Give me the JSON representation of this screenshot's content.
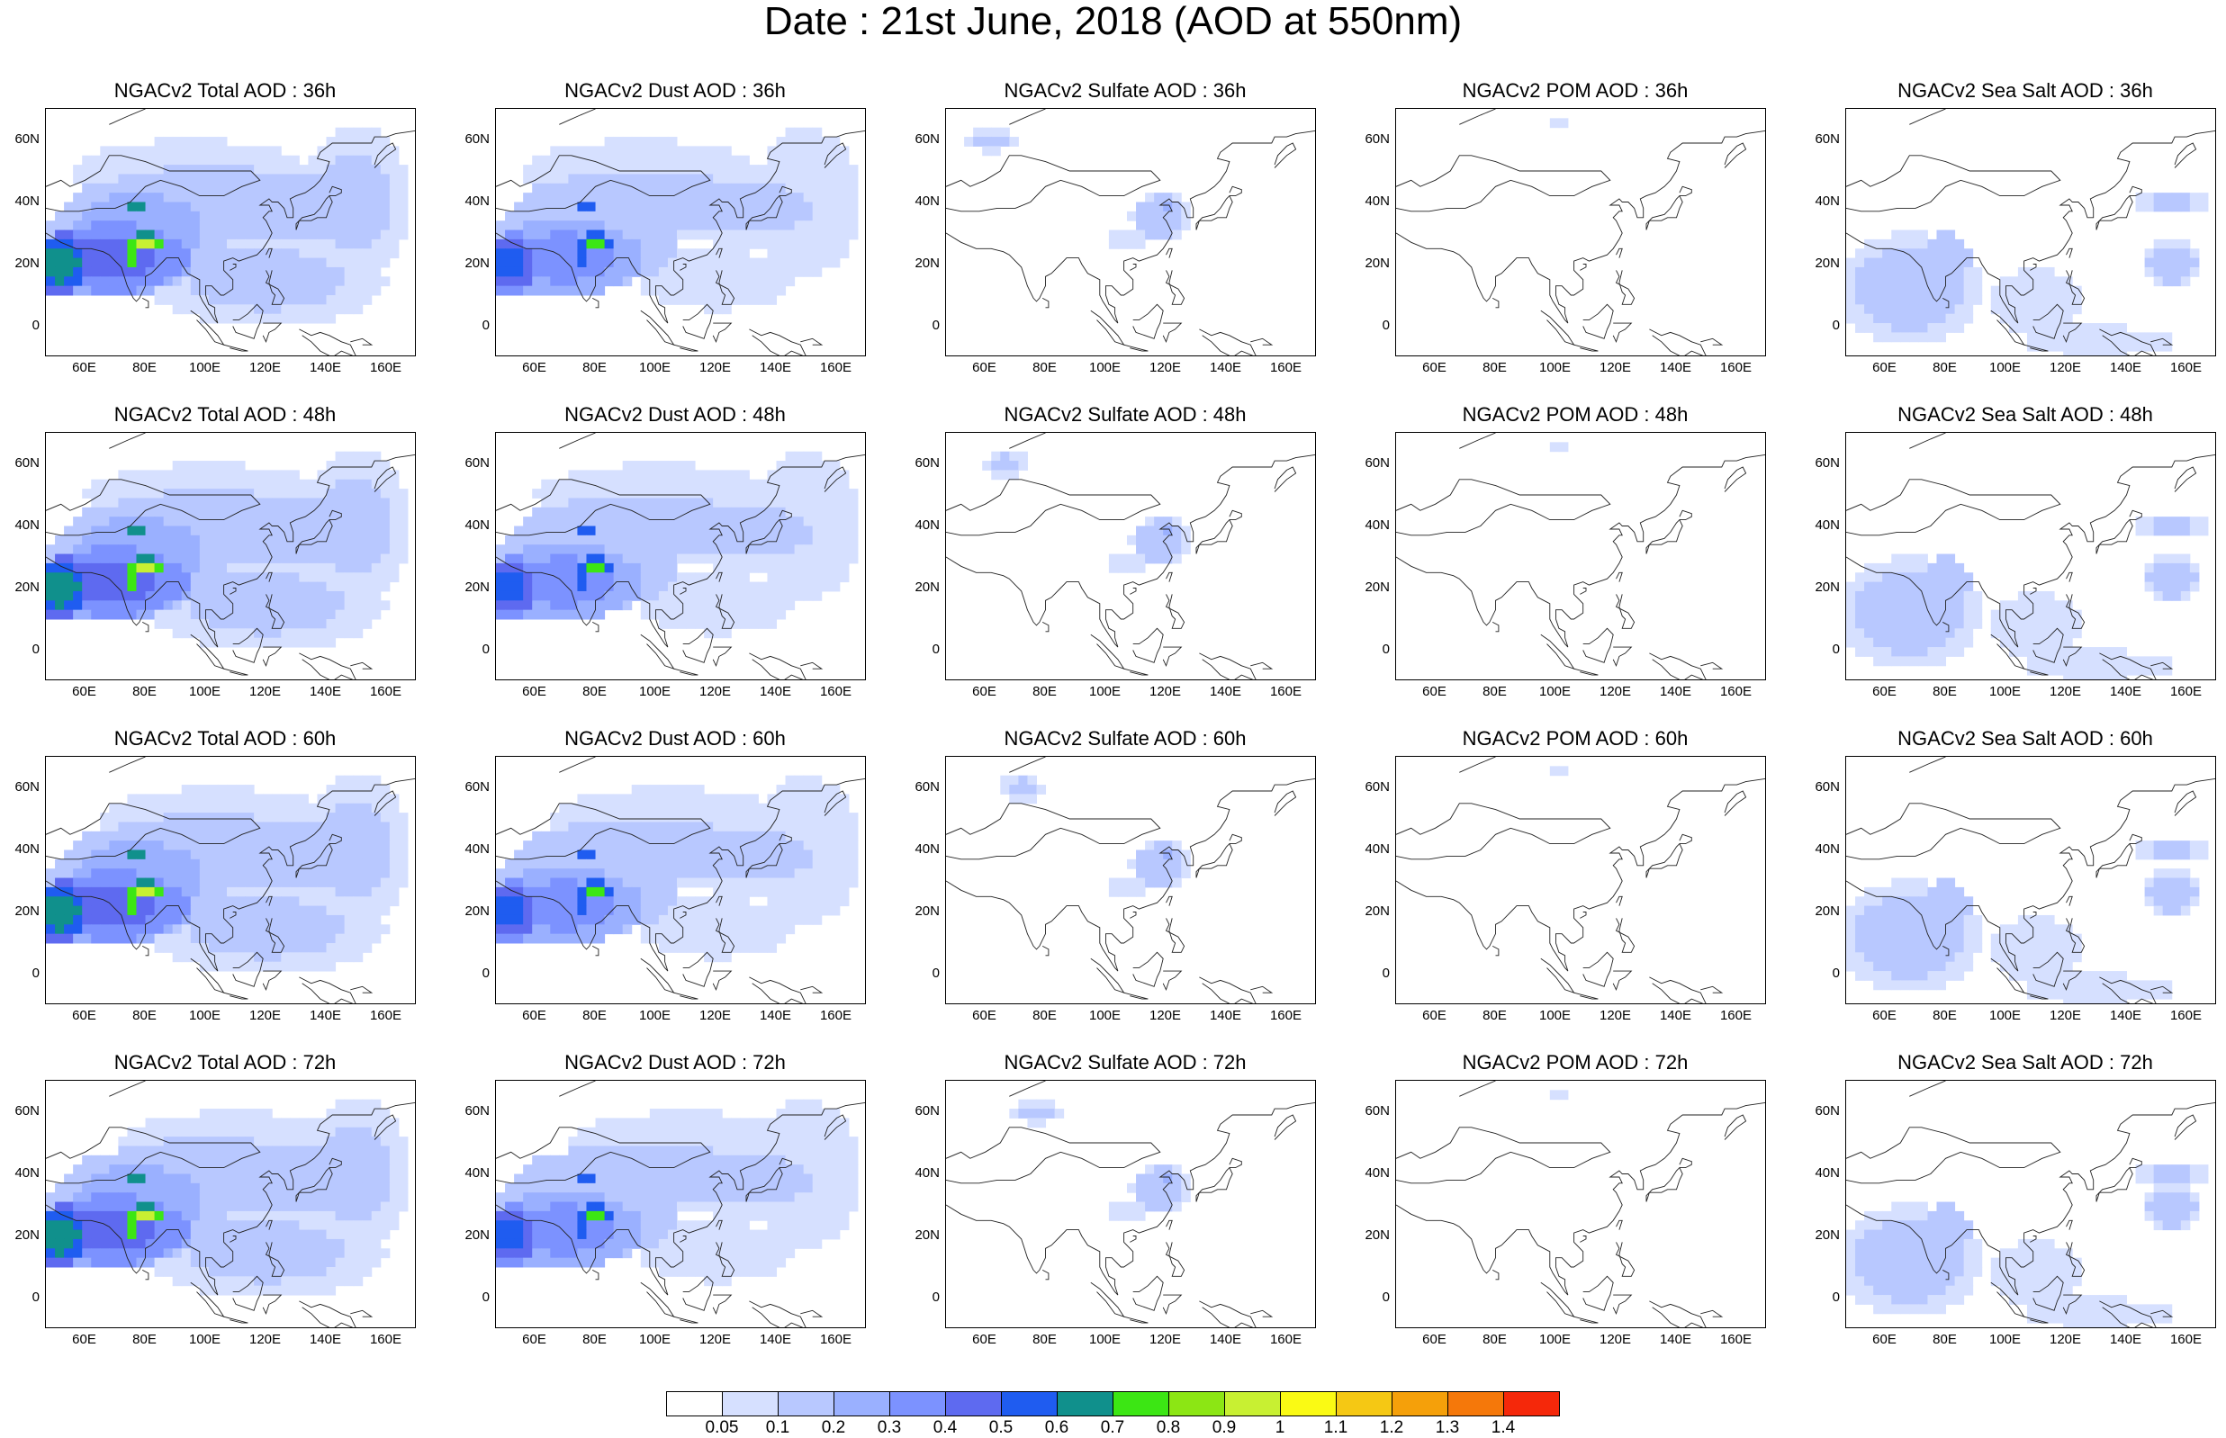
{
  "title": "Date : 21st June, 2018 (AOD at 550nm)",
  "axes": {
    "lat_ticks": [
      "60N",
      "40N",
      "20N",
      "0"
    ],
    "lon_ticks": [
      "60E",
      "80E",
      "100E",
      "120E",
      "140E",
      "160E"
    ]
  },
  "panels": [
    {
      "title": "NGACv2 Total AOD : 36h",
      "species": "total",
      "hour": "36h",
      "lead": 36
    },
    {
      "title": "NGACv2 Dust AOD : 36h",
      "species": "dust",
      "hour": "36h",
      "lead": 36
    },
    {
      "title": "NGACv2 Sulfate AOD : 36h",
      "species": "sulfate",
      "hour": "36h",
      "lead": 36
    },
    {
      "title": "NGACv2 POM AOD : 36h",
      "species": "pom",
      "hour": "36h",
      "lead": 36
    },
    {
      "title": "NGACv2 Sea Salt AOD : 36h",
      "species": "seasalt",
      "hour": "36h",
      "lead": 36
    },
    {
      "title": "NGACv2 Total AOD : 48h",
      "species": "total",
      "hour": "48h",
      "lead": 48
    },
    {
      "title": "NGACv2 Dust AOD : 48h",
      "species": "dust",
      "hour": "48h",
      "lead": 48
    },
    {
      "title": "NGACv2 Sulfate AOD : 48h",
      "species": "sulfate",
      "hour": "48h",
      "lead": 48
    },
    {
      "title": "NGACv2 POM AOD : 48h",
      "species": "pom",
      "hour": "48h",
      "lead": 48
    },
    {
      "title": "NGACv2 Sea Salt AOD : 48h",
      "species": "seasalt",
      "hour": "48h",
      "lead": 48
    },
    {
      "title": "NGACv2 Total AOD : 60h",
      "species": "total",
      "hour": "60h",
      "lead": 60
    },
    {
      "title": "NGACv2 Dust AOD : 60h",
      "species": "dust",
      "hour": "60h",
      "lead": 60
    },
    {
      "title": "NGACv2 Sulfate AOD : 60h",
      "species": "sulfate",
      "hour": "60h",
      "lead": 60
    },
    {
      "title": "NGACv2 POM AOD : 60h",
      "species": "pom",
      "hour": "60h",
      "lead": 60
    },
    {
      "title": "NGACv2 Sea Salt AOD : 60h",
      "species": "seasalt",
      "hour": "60h",
      "lead": 60
    },
    {
      "title": "NGACv2 Total AOD : 72h",
      "species": "total",
      "hour": "72h",
      "lead": 72
    },
    {
      "title": "NGACv2 Dust AOD : 72h",
      "species": "dust",
      "hour": "72h",
      "lead": 72
    },
    {
      "title": "NGACv2 Sulfate AOD : 72h",
      "species": "sulfate",
      "hour": "72h",
      "lead": 72
    },
    {
      "title": "NGACv2 POM AOD : 72h",
      "species": "pom",
      "hour": "72h",
      "lead": 72
    },
    {
      "title": "NGACv2 Sea Salt  AOD : 72h",
      "species": "seasalt",
      "hour": "72h",
      "lead": 72
    }
  ],
  "colorbar": {
    "labels": [
      "0.05",
      "0.1",
      "0.2",
      "0.3",
      "0.4",
      "0.5",
      "0.6",
      "0.7",
      "0.8",
      "0.9",
      "1",
      "1.1",
      "1.2",
      "1.3",
      "1.4"
    ],
    "colors": [
      "#ffffff",
      "#d6e0ff",
      "#b8c8ff",
      "#9ab0ff",
      "#7c92ff",
      "#5e6af0",
      "#1f5cf0",
      "#10908c",
      "#3ce614",
      "#8ce614",
      "#c8f032",
      "#fafa14",
      "#f5c814",
      "#f5a00a",
      "#f5780a",
      "#f5280a"
    ]
  }
}
